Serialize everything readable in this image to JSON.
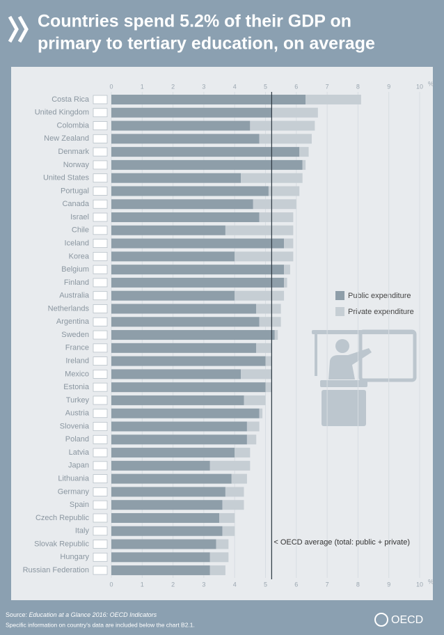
{
  "header": {
    "title_lines": [
      "Countries spend 5.2% of their GDP on",
      "primary to tertiary education, on average"
    ]
  },
  "chart_data": {
    "type": "bar",
    "stacked": true,
    "categories": [
      "Costa Rica",
      "United Kingdom",
      "Colombia",
      "New Zealand",
      "Denmark",
      "Norway",
      "United States",
      "Portugal",
      "Canada",
      "Israel",
      "Chile",
      "Iceland",
      "Korea",
      "Belgium",
      "Finland",
      "Australia",
      "Netherlands",
      "Argentina",
      "Sweden",
      "France",
      "Ireland",
      "Mexico",
      "Estonia",
      "Turkey",
      "Austria",
      "Slovenia",
      "Poland",
      "Latvia",
      "Japan",
      "Lithuania",
      "Germany",
      "Spain",
      "Czech Republic",
      "Italy",
      "Slovak Republic",
      "Hungary",
      "Russian Federation"
    ],
    "series": [
      {
        "name": "Public expenditure",
        "color": "#8e9ea9",
        "values": [
          6.3,
          5.2,
          4.5,
          4.8,
          6.1,
          6.2,
          4.2,
          5.1,
          4.6,
          4.8,
          3.7,
          5.6,
          4.0,
          5.6,
          5.6,
          4.0,
          4.7,
          4.8,
          5.3,
          4.7,
          5.0,
          4.2,
          5.0,
          4.3,
          4.8,
          4.4,
          4.4,
          4.0,
          3.2,
          3.9,
          3.7,
          3.6,
          3.5,
          3.6,
          3.4,
          3.2,
          3.2
        ]
      },
      {
        "name": "Private expenditure",
        "color": "#c6ced4",
        "values": [
          1.8,
          1.5,
          2.1,
          1.7,
          0.3,
          0.1,
          2.0,
          1.0,
          1.4,
          1.1,
          2.2,
          0.3,
          1.9,
          0.2,
          0.1,
          1.6,
          0.8,
          0.7,
          0.1,
          0.5,
          0.2,
          1.0,
          0.2,
          0.7,
          0.1,
          0.4,
          0.3,
          0.5,
          1.3,
          0.5,
          0.6,
          0.7,
          0.5,
          0.4,
          0.4,
          0.6,
          0.5
        ]
      }
    ],
    "xlim": [
      0,
      10
    ],
    "xticks": [
      0,
      1,
      2,
      3,
      4,
      5,
      6,
      7,
      8,
      9,
      10
    ],
    "x_unit": "%",
    "oecd_average": 5.2,
    "annotation": "< OECD average (total: public + private)"
  },
  "footer": {
    "source_label": "Source:",
    "source": "Education at a Glance 2016: OECD Indicators",
    "note": "Specific information on country's data are included below the chart B2.1.",
    "logo": "OECD"
  }
}
